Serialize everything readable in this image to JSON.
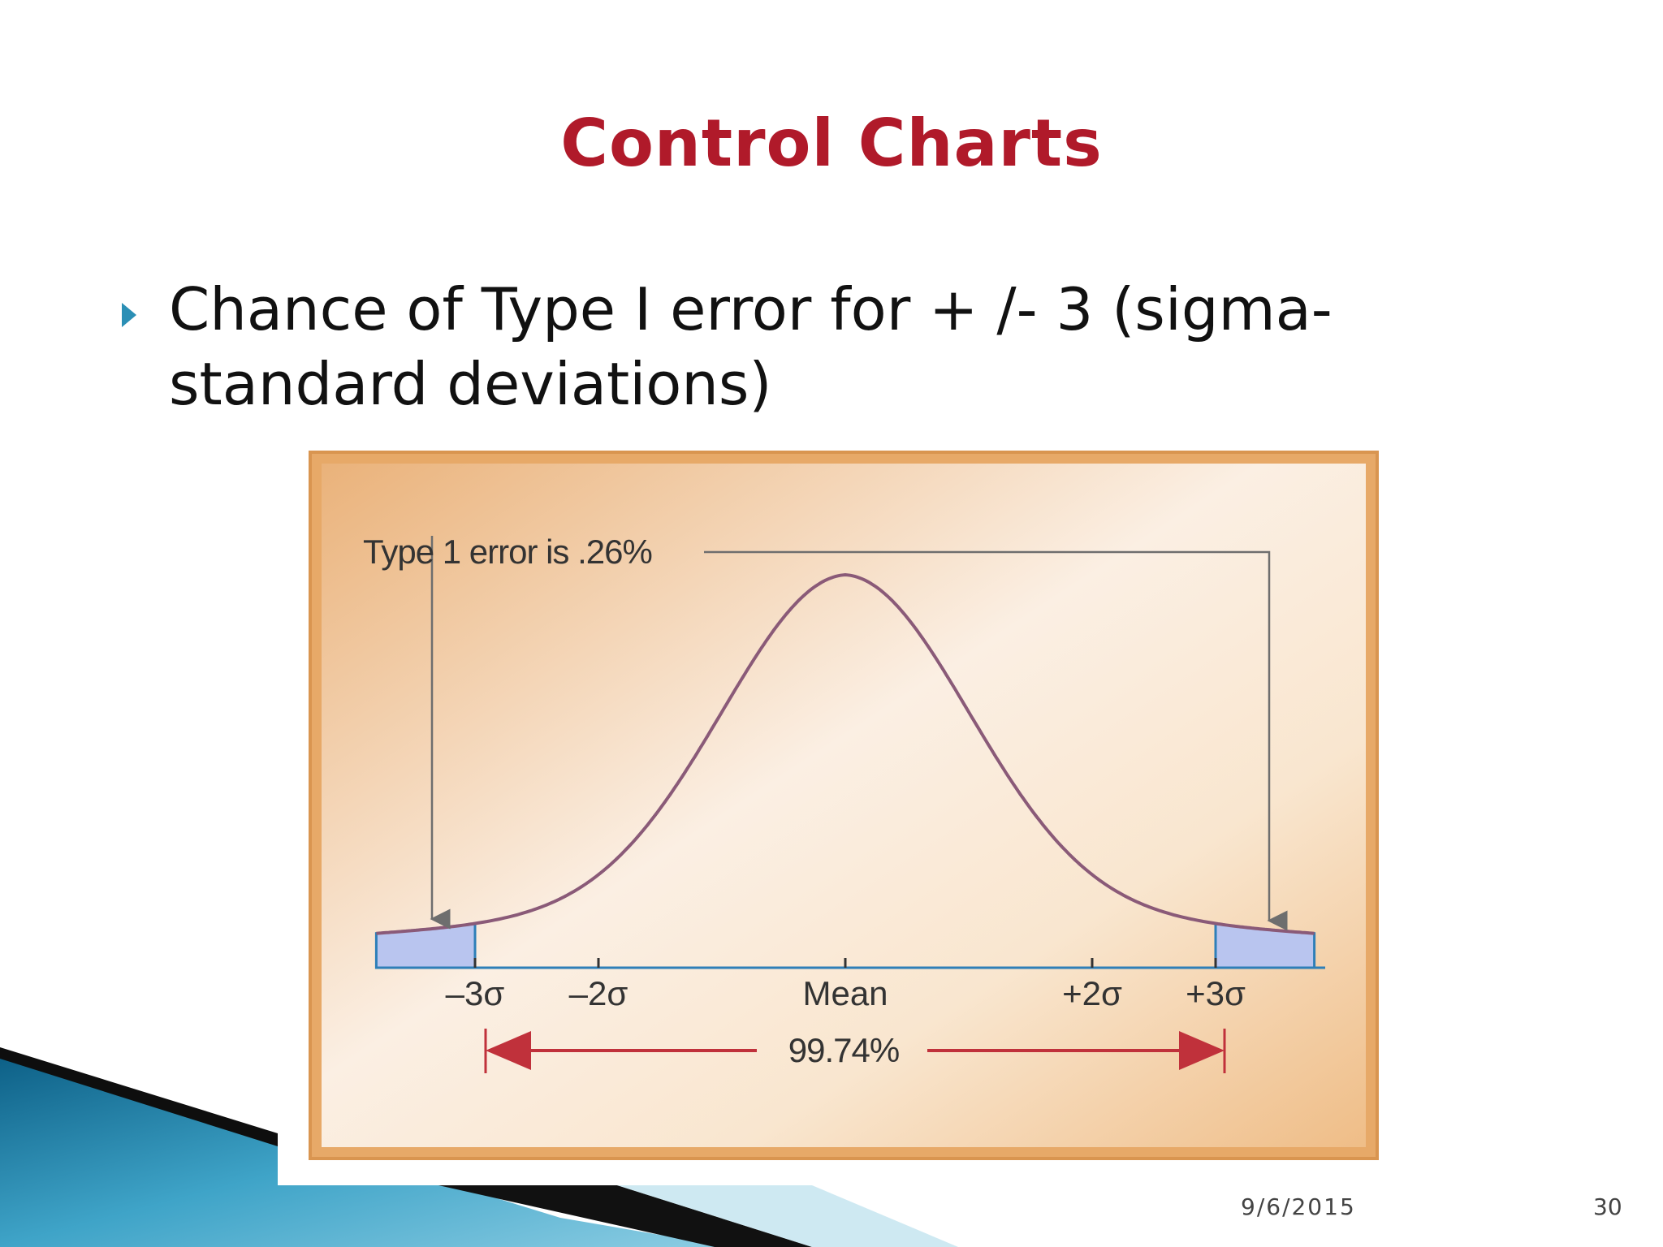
{
  "slide": {
    "title": "Control Charts",
    "bullet": "Chance of Type I error for + /- 3 (sigma-standard deviations)",
    "bullet_icon": "triangle-bullet-icon",
    "footer_date": "9/6/2015",
    "page_number": "30"
  },
  "colors": {
    "title": "#b01a2a",
    "bullet_icon": "#2b8fb5",
    "figure_background": "#f2c28e",
    "tail_fill": "#b9c5ef",
    "axis": "#2e7fb8",
    "curve": "#8a5a78",
    "range_arrow": "#c0313b"
  },
  "figure": {
    "annotation": "Type 1 error is .26%",
    "range_label": "99.74%",
    "ticks": [
      "–3σ",
      "–2σ",
      "Mean",
      "+2σ",
      "+3σ"
    ]
  },
  "chart_data": {
    "type": "area",
    "title": "",
    "xlabel": "",
    "ylabel": "",
    "x_ticks": [
      -3,
      -2,
      0,
      2,
      3
    ],
    "x_tick_labels": [
      "–3σ",
      "–2σ",
      "Mean",
      "+2σ",
      "+3σ"
    ],
    "curve": "normal distribution",
    "xlim": [
      -4,
      4
    ],
    "shaded_regions": [
      [
        -4,
        -3
      ],
      [
        3,
        4
      ]
    ],
    "annotations": [
      "Type 1 error is .26%",
      "99.74%"
    ]
  }
}
